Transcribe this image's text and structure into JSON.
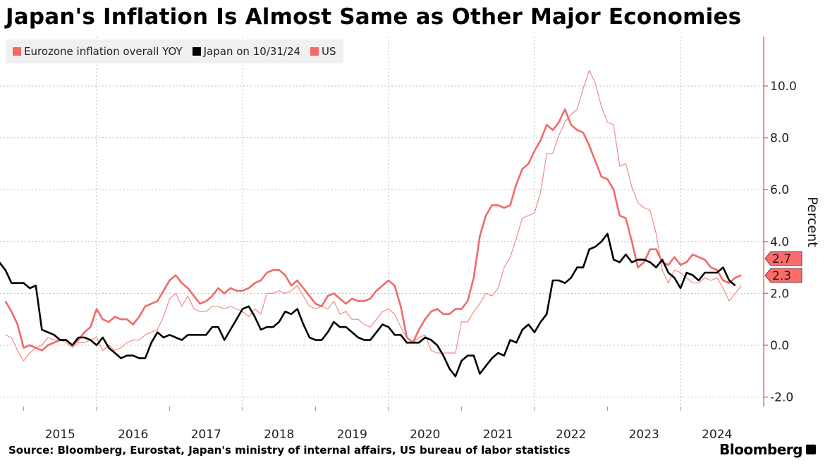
{
  "chart_data": {
    "type": "line",
    "title": "Japan's Inflation Is Almost Same as Other Major Economies",
    "ylabel": "Percent",
    "ylim": [
      -2.5,
      11.8
    ],
    "yticks": [
      -2.0,
      0.0,
      2.0,
      4.0,
      6.0,
      8.0,
      10.0
    ],
    "ytick_labels": [
      "-2.0",
      "0.0",
      "2.0",
      "4.0",
      "6.0",
      "8.0",
      "10.0"
    ],
    "xlim": [
      2014.75,
      2025.1
    ],
    "xtick_labels": [
      "2015",
      "2016",
      "2017",
      "2018",
      "2019",
      "2020",
      "2021",
      "2022",
      "2023",
      "2024"
    ],
    "grid": true,
    "legend_placement": "top-left",
    "source": "Source: Bloomberg, Eurostat, Japan's ministry of internal affairs, US bureau of labor statistics",
    "brand": "Bloomberg",
    "series": [
      {
        "name": "US",
        "legend": "US",
        "color": "#f06a6a",
        "style": "bold",
        "start": 2014.75,
        "values": [
          1.7,
          1.3,
          0.8,
          -0.1,
          0.0,
          -0.1,
          -0.2,
          0.0,
          0.1,
          0.2,
          0.2,
          0.0,
          0.2,
          0.5,
          0.7,
          1.4,
          1.0,
          0.9,
          1.1,
          1.0,
          1.0,
          0.8,
          1.1,
          1.5,
          1.6,
          1.7,
          2.1,
          2.5,
          2.7,
          2.4,
          2.2,
          1.9,
          1.6,
          1.7,
          1.9,
          2.2,
          2.0,
          2.2,
          2.1,
          2.1,
          2.2,
          2.4,
          2.5,
          2.8,
          2.9,
          2.9,
          2.7,
          2.3,
          2.5,
          2.2,
          1.9,
          1.6,
          1.5,
          1.9,
          2.0,
          1.8,
          1.6,
          1.8,
          1.7,
          1.7,
          1.8,
          2.1,
          2.3,
          2.5,
          2.3,
          1.5,
          0.3,
          0.1,
          0.6,
          1.0,
          1.3,
          1.4,
          1.2,
          1.2,
          1.4,
          1.4,
          1.7,
          2.6,
          4.2,
          5.0,
          5.4,
          5.4,
          5.3,
          5.4,
          6.2,
          6.8,
          7.0,
          7.5,
          7.9,
          8.5,
          8.3,
          8.6,
          9.1,
          8.5,
          8.3,
          8.2,
          7.7,
          7.1,
          6.5,
          6.4,
          6.0,
          5.0,
          4.9,
          4.0,
          3.0,
          3.2,
          3.7,
          3.7,
          3.2,
          3.1,
          3.4,
          3.1,
          3.2,
          3.5,
          3.4,
          3.3,
          3.0,
          2.9,
          2.5,
          2.4,
          2.6,
          2.7
        ],
        "end_label": "2.7"
      },
      {
        "name": "Eurozone inflation overall YOY",
        "legend": "Eurozone inflation overall YOY",
        "color": "#f28a8a",
        "style": "thin",
        "start": 2014.75,
        "values": [
          0.4,
          0.3,
          -0.2,
          -0.6,
          -0.3,
          -0.1,
          0.0,
          0.3,
          0.2,
          0.2,
          0.1,
          -0.1,
          0.1,
          0.1,
          0.2,
          0.3,
          -0.2,
          0.0,
          -0.2,
          -0.1,
          0.1,
          0.2,
          0.2,
          0.4,
          0.5,
          0.6,
          1.1,
          1.8,
          2.0,
          1.5,
          1.9,
          1.4,
          1.3,
          1.3,
          1.5,
          1.5,
          1.4,
          1.5,
          1.4,
          1.3,
          1.1,
          1.4,
          1.2,
          2.0,
          2.0,
          2.1,
          2.0,
          2.1,
          2.3,
          1.9,
          1.5,
          1.4,
          1.5,
          1.4,
          1.7,
          1.2,
          1.3,
          1.0,
          1.0,
          0.8,
          0.7,
          1.0,
          1.3,
          1.4,
          1.2,
          0.7,
          0.3,
          0.1,
          0.3,
          0.4,
          -0.2,
          -0.3,
          -0.3,
          -0.3,
          -0.3,
          0.9,
          0.9,
          1.3,
          1.6,
          2.0,
          1.9,
          2.2,
          3.0,
          3.4,
          4.1,
          4.9,
          5.0,
          5.1,
          5.9,
          7.4,
          7.4,
          8.1,
          8.6,
          8.9,
          9.1,
          9.9,
          10.6,
          10.1,
          9.2,
          8.6,
          8.5,
          6.9,
          7.0,
          6.1,
          5.5,
          5.3,
          5.2,
          4.3,
          2.9,
          2.4,
          2.9,
          2.8,
          2.6,
          2.4,
          2.4,
          2.6,
          2.5,
          2.6,
          2.2,
          1.7,
          2.0,
          2.3
        ],
        "end_label": "2.3"
      },
      {
        "name": "Japan",
        "legend": "Japan on 10/31/24",
        "color": "#000000",
        "style": "bold",
        "start": 2014.667,
        "values": [
          3.2,
          2.9,
          2.4,
          2.4,
          2.4,
          2.2,
          2.3,
          0.6,
          0.5,
          0.4,
          0.2,
          0.2,
          0.0,
          0.3,
          0.3,
          0.2,
          0.0,
          0.3,
          -0.1,
          -0.3,
          -0.5,
          -0.4,
          -0.4,
          -0.5,
          -0.5,
          0.1,
          0.5,
          0.3,
          0.4,
          0.3,
          0.2,
          0.4,
          0.4,
          0.4,
          0.4,
          0.7,
          0.7,
          0.2,
          0.6,
          1.0,
          1.4,
          1.5,
          1.1,
          0.6,
          0.7,
          0.7,
          0.9,
          1.3,
          1.2,
          1.4,
          0.8,
          0.3,
          0.2,
          0.2,
          0.5,
          0.9,
          0.7,
          0.7,
          0.5,
          0.3,
          0.2,
          0.2,
          0.5,
          0.8,
          0.7,
          0.4,
          0.4,
          0.1,
          0.1,
          0.1,
          0.3,
          0.2,
          0.0,
          -0.4,
          -0.9,
          -1.2,
          -0.6,
          -0.4,
          -0.4,
          -1.1,
          -0.8,
          -0.5,
          -0.3,
          -0.4,
          0.2,
          0.1,
          0.6,
          0.8,
          0.5,
          0.9,
          1.2,
          2.5,
          2.5,
          2.4,
          2.6,
          3.0,
          3.0,
          3.7,
          3.8,
          4.0,
          4.3,
          3.3,
          3.2,
          3.5,
          3.2,
          3.3,
          3.3,
          3.2,
          3.0,
          3.3,
          2.8,
          2.6,
          2.2,
          2.8,
          2.7,
          2.5,
          2.8,
          2.8,
          2.8,
          3.0,
          2.5,
          2.3
        ]
      }
    ]
  }
}
